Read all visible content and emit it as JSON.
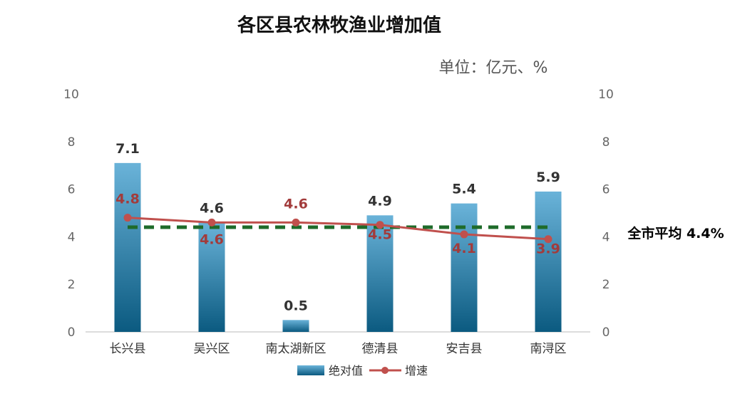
{
  "chart_data": {
    "type": "bar",
    "title": "各区县农林牧渔业增加值",
    "unit": "单位：亿元、%",
    "categories": [
      "长兴县",
      "吴兴区",
      "南太湖新区",
      "德清县",
      "安吉县",
      "南浔区"
    ],
    "series": [
      {
        "name": "绝对值",
        "type": "bar",
        "values": [
          7.1,
          4.6,
          0.5,
          4.9,
          5.4,
          5.9
        ],
        "labels": [
          "7.1",
          "4.6",
          "0.5",
          "4.9",
          "5.4",
          "5.9"
        ],
        "color": "#2e7eab"
      },
      {
        "name": "增速",
        "type": "line",
        "values": [
          4.8,
          4.6,
          4.6,
          4.5,
          4.1,
          3.9
        ],
        "labels": [
          "4.8",
          "4.6",
          "4.6",
          "4.5",
          "4.1",
          "3.9"
        ],
        "color": "#c0504d"
      }
    ],
    "reference_line": {
      "value": 4.4,
      "label": "全市平均 4.4%",
      "color": "#1e6b2a",
      "style": "dashed"
    },
    "left_axis": {
      "ylim": [
        0,
        10
      ],
      "ticks": [
        "0",
        "2",
        "4",
        "6",
        "8",
        "10"
      ]
    },
    "right_axis": {
      "ylim": [
        0,
        10
      ],
      "ticks": [
        "0",
        "2",
        "4",
        "6",
        "8",
        "10"
      ]
    },
    "legend": "bottom",
    "grid": false
  }
}
